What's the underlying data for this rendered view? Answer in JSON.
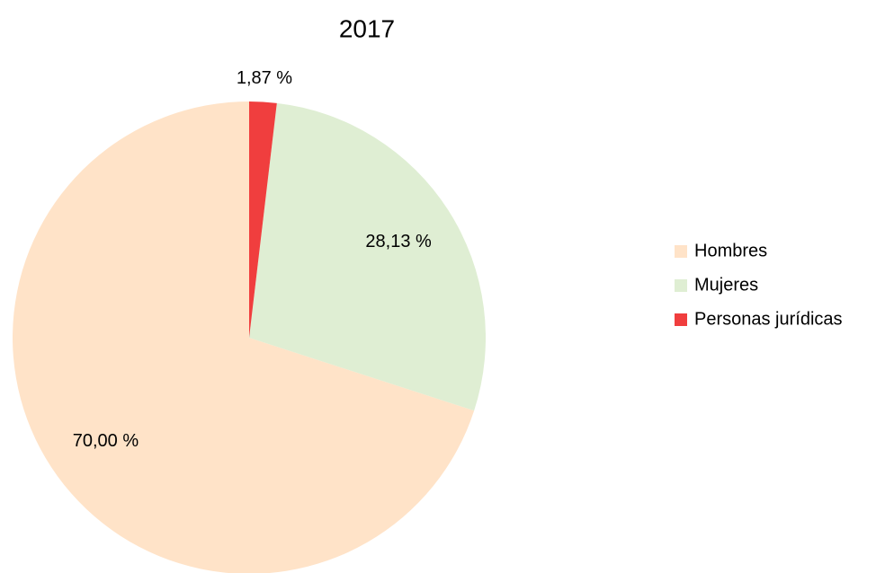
{
  "chart_data": {
    "type": "pie",
    "title": "2017",
    "categories": [
      "Hombres",
      "Mujeres",
      "Personas jurídicas"
    ],
    "values": [
      70.0,
      28.13,
      1.87
    ],
    "value_labels": [
      "70,00 %",
      "28,13 %",
      "1,87 %"
    ],
    "colors": [
      "#ffe3c8",
      "#dfeed3",
      "#f03e3e"
    ],
    "legend": "right"
  }
}
